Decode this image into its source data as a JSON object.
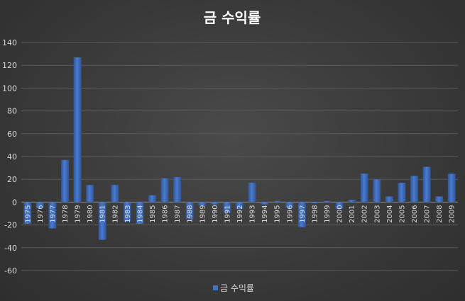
{
  "chart_data": {
    "type": "bar",
    "title": "금 수익률",
    "categories": [
      "1975",
      "1976",
      "1977",
      "1978",
      "1979",
      "1980",
      "1981",
      "1982",
      "1983",
      "1984",
      "1985",
      "1986",
      "1987",
      "1988",
      "1989",
      "1990",
      "1991",
      "1992",
      "1993",
      "1994",
      "1995",
      "1996",
      "1997",
      "1998",
      "1999",
      "2000",
      "2001",
      "2002",
      "2003",
      "2004",
      "2005",
      "2006",
      "2007",
      "2008",
      "2009"
    ],
    "series": [
      {
        "name": "금 수익률",
        "values": [
          -19,
          -5,
          -23,
          37,
          127,
          15,
          -33,
          15,
          -17,
          -19,
          6,
          21,
          22,
          -15,
          -3,
          -2,
          -9,
          -6,
          17,
          -2,
          1,
          -5,
          -22,
          -1,
          1,
          -6,
          2,
          25,
          20,
          5,
          17,
          23,
          31,
          5,
          25
        ]
      }
    ],
    "xlabel": "",
    "ylabel": "",
    "ylim": [
      -60,
      140
    ],
    "yticks": [
      140,
      120,
      100,
      80,
      60,
      40,
      20,
      0,
      -20,
      -40,
      -60
    ],
    "grid": true,
    "legend_position": "bottom",
    "bar_color": "#4472c4",
    "background_color": "#3c3c3c",
    "text_color": "#d9d9d9"
  }
}
